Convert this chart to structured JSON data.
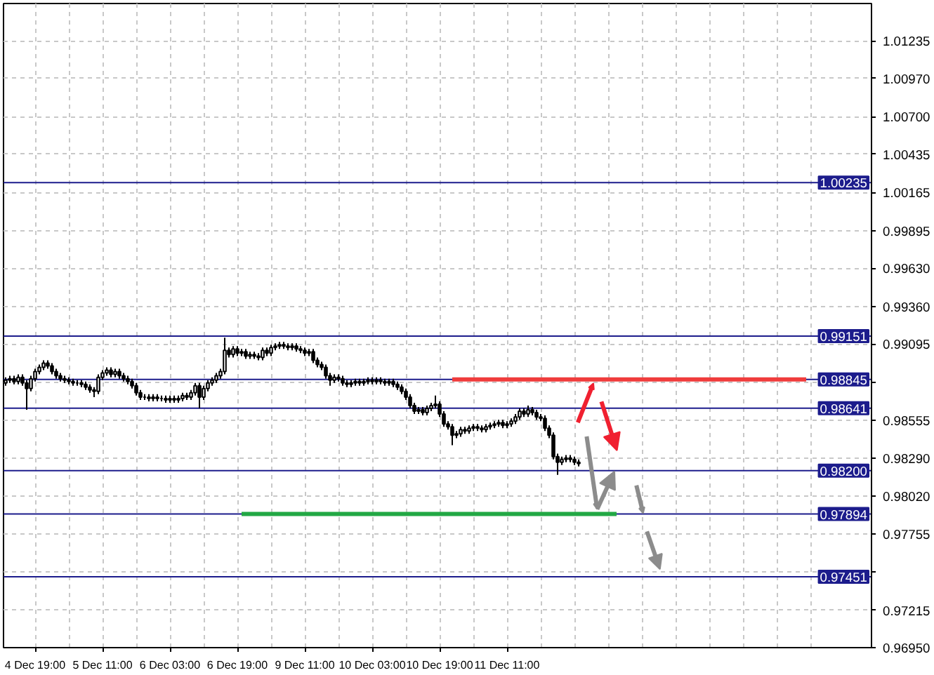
{
  "chart_data": {
    "type": "candlestick",
    "color": "#000000",
    "categories": [
      null,
      null,
      null,
      null,
      null,
      null,
      null,
      "4 Dec 19:00",
      null,
      null,
      null,
      null,
      null,
      null,
      null,
      null,
      null,
      null,
      null,
      null,
      null,
      null,
      null,
      "5 Dec 11:00",
      null,
      null,
      null,
      null,
      null,
      null,
      null,
      null,
      null,
      null,
      null,
      null,
      null,
      null,
      null,
      "6 Dec 03:00",
      null,
      null,
      null,
      null,
      null,
      null,
      null,
      null,
      null,
      null,
      null,
      null,
      null,
      null,
      null,
      "6 Dec 19:00",
      null,
      null,
      null,
      null,
      null,
      null,
      null,
      null,
      null,
      null,
      null,
      null,
      null,
      null,
      null,
      "9 Dec 11:00",
      null,
      null,
      null,
      null,
      null,
      null,
      null,
      null,
      null,
      null,
      null,
      null,
      null,
      null,
      null,
      "10 Dec 03:00",
      null,
      null,
      null,
      null,
      null,
      null,
      null,
      null,
      null,
      null,
      null,
      null,
      null,
      null,
      null,
      "10 Dec 19:00",
      null,
      null,
      null,
      null,
      null,
      null,
      null,
      null,
      null,
      null,
      null,
      null,
      null,
      null,
      null,
      "11 Dec 11:00",
      null,
      null,
      null,
      null,
      null,
      null,
      null,
      null,
      null,
      null,
      null,
      null,
      null,
      null,
      null,
      null,
      null,
      null,
      null,
      null,
      null,
      null,
      null,
      null,
      null,
      null,
      null,
      null,
      null,
      null,
      null,
      null,
      null,
      null,
      null,
      null,
      null,
      null,
      null,
      null,
      null,
      null,
      null,
      null,
      null,
      null,
      null,
      null,
      null,
      null,
      null,
      null,
      null,
      null,
      null,
      null,
      null,
      null,
      null,
      null,
      null,
      null,
      null,
      null,
      null,
      null,
      null,
      null,
      null,
      null,
      null,
      null,
      null,
      null
    ],
    "ohlc": [
      [
        0.9882,
        0.9886,
        0.988,
        0.9884
      ],
      [
        0.9884,
        0.9887,
        0.9882,
        0.9885
      ],
      [
        0.9885,
        0.9887,
        0.9881,
        0.9883
      ],
      [
        0.9883,
        0.9888,
        0.9881,
        0.9886
      ],
      [
        0.9886,
        0.9888,
        0.988,
        0.9882
      ],
      [
        0.9882,
        0.9884,
        0.9863,
        0.9878
      ],
      [
        0.9878,
        0.9887,
        0.9876,
        0.9885
      ],
      [
        0.9885,
        0.9892,
        0.9883,
        0.989
      ],
      [
        0.989,
        0.9895,
        0.9888,
        0.9893
      ],
      [
        0.9893,
        0.9898,
        0.9891,
        0.9896
      ],
      [
        0.9896,
        0.9898,
        0.9892,
        0.9894
      ],
      [
        0.9894,
        0.9896,
        0.9888,
        0.989
      ],
      [
        0.989,
        0.9892,
        0.9885,
        0.9887
      ],
      [
        0.9887,
        0.9889,
        0.9883,
        0.9885
      ],
      [
        0.9885,
        0.9887,
        0.9882,
        0.9884
      ],
      [
        0.9884,
        0.9886,
        0.9881,
        0.9883
      ],
      [
        0.9883,
        0.9885,
        0.988,
        0.9882
      ],
      [
        0.9882,
        0.9884,
        0.988,
        0.9882
      ],
      [
        0.9882,
        0.9884,
        0.9879,
        0.9881
      ],
      [
        0.9881,
        0.9883,
        0.9877,
        0.9879
      ],
      [
        0.9879,
        0.9881,
        0.9875,
        0.9877
      ],
      [
        0.9877,
        0.9879,
        0.9872,
        0.9876
      ],
      [
        0.9876,
        0.9888,
        0.9874,
        0.9886
      ],
      [
        0.9886,
        0.9891,
        0.9884,
        0.9889
      ],
      [
        0.9889,
        0.9893,
        0.9887,
        0.9891
      ],
      [
        0.9891,
        0.9893,
        0.9886,
        0.9888
      ],
      [
        0.9888,
        0.9892,
        0.9886,
        0.989
      ],
      [
        0.989,
        0.9892,
        0.9885,
        0.9887
      ],
      [
        0.9887,
        0.9889,
        0.9883,
        0.9885
      ],
      [
        0.9885,
        0.9887,
        0.9881,
        0.9883
      ],
      [
        0.9883,
        0.9885,
        0.9878,
        0.988
      ],
      [
        0.988,
        0.9882,
        0.9873,
        0.9875
      ],
      [
        0.9875,
        0.9877,
        0.987,
        0.9872
      ],
      [
        0.9872,
        0.9874,
        0.987,
        0.9872
      ],
      [
        0.9872,
        0.9874,
        0.9869,
        0.9871
      ],
      [
        0.9871,
        0.9874,
        0.9869,
        0.9872
      ],
      [
        0.9872,
        0.9874,
        0.9869,
        0.9871
      ],
      [
        0.9871,
        0.9873,
        0.9869,
        0.9871
      ],
      [
        0.9871,
        0.9873,
        0.9868,
        0.987
      ],
      [
        0.987,
        0.9873,
        0.9868,
        0.9871
      ],
      [
        0.9871,
        0.9873,
        0.9868,
        0.987
      ],
      [
        0.987,
        0.9873,
        0.9868,
        0.9871
      ],
      [
        0.9871,
        0.9875,
        0.9869,
        0.9873
      ],
      [
        0.9873,
        0.9875,
        0.987,
        0.9872
      ],
      [
        0.9872,
        0.9877,
        0.987,
        0.9875
      ],
      [
        0.9875,
        0.9882,
        0.9873,
        0.988
      ],
      [
        0.988,
        0.9882,
        0.9864,
        0.9872
      ],
      [
        0.9872,
        0.988,
        0.987,
        0.9878
      ],
      [
        0.9878,
        0.9884,
        0.9876,
        0.9882
      ],
      [
        0.9882,
        0.9886,
        0.988,
        0.9884
      ],
      [
        0.9884,
        0.9889,
        0.9882,
        0.9887
      ],
      [
        0.9887,
        0.9892,
        0.9885,
        0.989
      ],
      [
        0.989,
        0.9914,
        0.9888,
        0.9905
      ],
      [
        0.9905,
        0.9907,
        0.99,
        0.9902
      ],
      [
        0.9902,
        0.9908,
        0.99,
        0.9906
      ],
      [
        0.9906,
        0.9908,
        0.9901,
        0.9903
      ],
      [
        0.9903,
        0.9906,
        0.9901,
        0.9904
      ],
      [
        0.9904,
        0.9906,
        0.9899,
        0.9901
      ],
      [
        0.9901,
        0.9904,
        0.9899,
        0.9902
      ],
      [
        0.9902,
        0.9904,
        0.9899,
        0.9901
      ],
      [
        0.9901,
        0.9903,
        0.9898,
        0.99
      ],
      [
        0.99,
        0.9907,
        0.9898,
        0.9905
      ],
      [
        0.9905,
        0.9907,
        0.9901,
        0.9903
      ],
      [
        0.9903,
        0.9909,
        0.9901,
        0.9907
      ],
      [
        0.9907,
        0.991,
        0.9905,
        0.9908
      ],
      [
        0.9908,
        0.9911,
        0.9906,
        0.9909
      ],
      [
        0.9909,
        0.9911,
        0.9906,
        0.9908
      ],
      [
        0.9908,
        0.991,
        0.9905,
        0.9907
      ],
      [
        0.9907,
        0.991,
        0.9905,
        0.9908
      ],
      [
        0.9908,
        0.991,
        0.9904,
        0.9906
      ],
      [
        0.9906,
        0.9908,
        0.9903,
        0.9905
      ],
      [
        0.9905,
        0.9907,
        0.9901,
        0.9903
      ],
      [
        0.9903,
        0.9906,
        0.9901,
        0.9904
      ],
      [
        0.9904,
        0.9906,
        0.9896,
        0.9898
      ],
      [
        0.9898,
        0.99,
        0.9893,
        0.9895
      ],
      [
        0.9895,
        0.9897,
        0.9891,
        0.9893
      ],
      [
        0.9893,
        0.9895,
        0.9885,
        0.9887
      ],
      [
        0.9887,
        0.9889,
        0.988,
        0.9884
      ],
      [
        0.9884,
        0.9888,
        0.9882,
        0.9886
      ],
      [
        0.9886,
        0.9888,
        0.9883,
        0.9885
      ],
      [
        0.9885,
        0.9887,
        0.988,
        0.9882
      ],
      [
        0.9882,
        0.9884,
        0.9879,
        0.9881
      ],
      [
        0.9881,
        0.9884,
        0.9879,
        0.9882
      ],
      [
        0.9882,
        0.9885,
        0.988,
        0.9883
      ],
      [
        0.9883,
        0.9885,
        0.988,
        0.9882
      ],
      [
        0.9882,
        0.9885,
        0.988,
        0.9883
      ],
      [
        0.9883,
        0.9886,
        0.9881,
        0.9884
      ],
      [
        0.9884,
        0.9886,
        0.9881,
        0.9883
      ],
      [
        0.9883,
        0.9886,
        0.9881,
        0.9884
      ],
      [
        0.9884,
        0.9886,
        0.9881,
        0.9883
      ],
      [
        0.9883,
        0.9885,
        0.988,
        0.9882
      ],
      [
        0.9882,
        0.9885,
        0.988,
        0.9883
      ],
      [
        0.9883,
        0.9885,
        0.9879,
        0.9881
      ],
      [
        0.9881,
        0.9883,
        0.9877,
        0.9879
      ],
      [
        0.9879,
        0.9881,
        0.9874,
        0.9876
      ],
      [
        0.9876,
        0.9878,
        0.987,
        0.9872
      ],
      [
        0.9872,
        0.9874,
        0.9864,
        0.9866
      ],
      [
        0.9866,
        0.9868,
        0.986,
        0.9862
      ],
      [
        0.9862,
        0.9865,
        0.986,
        0.9863
      ],
      [
        0.9863,
        0.9865,
        0.9859,
        0.9861
      ],
      [
        0.9861,
        0.9866,
        0.9859,
        0.9864
      ],
      [
        0.9864,
        0.9868,
        0.9862,
        0.9866
      ],
      [
        0.9866,
        0.9873,
        0.9864,
        0.9867
      ],
      [
        0.9867,
        0.9869,
        0.9858,
        0.986
      ],
      [
        0.986,
        0.9862,
        0.9851,
        0.9853
      ],
      [
        0.9853,
        0.9855,
        0.9849,
        0.9851
      ],
      [
        0.9851,
        0.9853,
        0.9838,
        0.9845
      ],
      [
        0.9845,
        0.9848,
        0.9843,
        0.9846
      ],
      [
        0.9846,
        0.9851,
        0.9844,
        0.9849
      ],
      [
        0.9849,
        0.9851,
        0.9846,
        0.9848
      ],
      [
        0.9848,
        0.9852,
        0.9846,
        0.985
      ],
      [
        0.985,
        0.9853,
        0.9848,
        0.9851
      ],
      [
        0.9851,
        0.9853,
        0.9848,
        0.985
      ],
      [
        0.985,
        0.9852,
        0.9847,
        0.9849
      ],
      [
        0.9849,
        0.9853,
        0.9847,
        0.9851
      ],
      [
        0.9851,
        0.9854,
        0.9849,
        0.9852
      ],
      [
        0.9852,
        0.9855,
        0.985,
        0.9853
      ],
      [
        0.9853,
        0.9856,
        0.9851,
        0.9854
      ],
      [
        0.9854,
        0.9856,
        0.985,
        0.9852
      ],
      [
        0.9852,
        0.9855,
        0.985,
        0.9853
      ],
      [
        0.9853,
        0.9857,
        0.9851,
        0.9855
      ],
      [
        0.9855,
        0.986,
        0.9853,
        0.9858
      ],
      [
        0.9858,
        0.9864,
        0.9856,
        0.9862
      ],
      [
        0.9862,
        0.9864,
        0.9858,
        0.986
      ],
      [
        0.986,
        0.9866,
        0.9858,
        0.9863
      ],
      [
        0.9863,
        0.9865,
        0.9859,
        0.9861
      ],
      [
        0.9861,
        0.9863,
        0.9856,
        0.9858
      ],
      [
        0.9858,
        0.986,
        0.9855,
        0.9857
      ],
      [
        0.9857,
        0.9859,
        0.9848,
        0.985
      ],
      [
        0.985,
        0.9852,
        0.9843,
        0.9845
      ],
      [
        0.9845,
        0.9847,
        0.9828,
        0.983
      ],
      [
        0.983,
        0.9832,
        0.9817,
        0.9826
      ],
      [
        0.9826,
        0.983,
        0.9824,
        0.9828
      ],
      [
        0.9828,
        0.9831,
        0.9826,
        0.9829
      ],
      [
        0.9829,
        0.9831,
        0.9826,
        0.9828
      ],
      [
        0.9828,
        0.983,
        0.9824,
        0.9826
      ],
      [
        0.9826,
        0.9828,
        0.9823,
        0.9825
      ],
      null,
      null,
      null,
      null,
      null,
      null,
      null,
      null,
      null,
      null,
      null,
      null,
      null,
      null,
      null,
      null,
      null,
      null,
      null,
      null,
      null,
      null,
      null,
      null,
      null,
      null,
      null,
      null,
      null,
      null,
      null,
      null,
      null,
      null,
      null,
      null,
      null,
      null,
      null,
      null,
      null,
      null,
      null,
      null,
      null,
      null,
      null,
      null,
      null,
      null,
      null,
      null,
      null,
      null,
      null,
      null,
      null
    ],
    "series": [
      {
        "type": "line",
        "color": "#f03c3c",
        "values": [
          null,
          null,
          null,
          null,
          null,
          null,
          null,
          null,
          null,
          null,
          null,
          null,
          null,
          null,
          null,
          null,
          null,
          null,
          null,
          null,
          null,
          null,
          null,
          null,
          null,
          null,
          null,
          null,
          null,
          null,
          null,
          null,
          null,
          null,
          null,
          null,
          null,
          null,
          null,
          null,
          null,
          null,
          null,
          null,
          null,
          null,
          null,
          null,
          null,
          null,
          null,
          null,
          null,
          null,
          null,
          null,
          null,
          null,
          null,
          null,
          null,
          null,
          null,
          null,
          null,
          null,
          null,
          null,
          null,
          null,
          null,
          null,
          null,
          null,
          null,
          null,
          null,
          null,
          null,
          null,
          null,
          null,
          null,
          null,
          null,
          null,
          null,
          null,
          null,
          null,
          null,
          null,
          null,
          null,
          null,
          null,
          null,
          null,
          null,
          null,
          null,
          null,
          null,
          null,
          null,
          null,
          0.98845,
          0.98845,
          0.98845,
          0.98845,
          0.98845,
          0.98845,
          0.98845,
          0.98845,
          0.98845,
          0.98845,
          0.98845,
          0.98845,
          0.98845,
          0.98845,
          0.98845,
          0.98845,
          0.98845,
          0.98845,
          0.98845,
          0.98845,
          0.98845,
          0.98845,
          0.98845,
          0.98845,
          0.98845,
          0.98845,
          0.98845,
          0.98845,
          0.98845,
          0.98845,
          0.98845,
          0.98845,
          0.98845,
          0.98845,
          0.98845,
          0.98845,
          0.98845,
          0.98845,
          0.98845,
          0.98845,
          0.98845,
          0.98845,
          0.98845,
          0.98845,
          0.98845,
          0.98845,
          0.98845,
          0.98845,
          0.98845,
          0.98845,
          0.98845,
          0.98845,
          0.98845,
          0.98845,
          0.98845,
          0.98845,
          0.98845,
          0.98845,
          0.98845,
          0.98845,
          0.98845,
          0.98845,
          0.98845,
          0.98845,
          0.98845,
          0.98845,
          0.98845,
          0.98845,
          0.98845,
          0.98845,
          0.98845,
          0.98845,
          0.98845,
          0.98845,
          0.98845,
          0.98845,
          0.98845,
          0.98845,
          0.98845,
          0.98845,
          0.98845,
          0.98845,
          0.98845,
          0.98845,
          0.98845,
          null,
          null,
          null
        ]
      },
      {
        "type": "line",
        "color": "#22a844",
        "values": [
          null,
          null,
          null,
          null,
          null,
          null,
          null,
          null,
          null,
          null,
          null,
          null,
          null,
          null,
          null,
          null,
          null,
          null,
          null,
          null,
          null,
          null,
          null,
          null,
          null,
          null,
          null,
          null,
          null,
          null,
          null,
          null,
          null,
          null,
          null,
          null,
          null,
          null,
          null,
          null,
          null,
          null,
          null,
          null,
          null,
          null,
          null,
          null,
          null,
          null,
          null,
          null,
          null,
          null,
          null,
          null,
          0.97894,
          0.97894,
          0.97894,
          0.97894,
          0.97894,
          0.97894,
          0.97894,
          0.97894,
          0.97894,
          0.97894,
          0.97894,
          0.97894,
          0.97894,
          0.97894,
          0.97894,
          0.97894,
          0.97894,
          0.97894,
          0.97894,
          0.97894,
          0.97894,
          0.97894,
          0.97894,
          0.97894,
          0.97894,
          0.97894,
          0.97894,
          0.97894,
          0.97894,
          0.97894,
          0.97894,
          0.97894,
          0.97894,
          0.97894,
          0.97894,
          0.97894,
          0.97894,
          0.97894,
          0.97894,
          0.97894,
          0.97894,
          0.97894,
          0.97894,
          0.97894,
          0.97894,
          0.97894,
          0.97894,
          0.97894,
          0.97894,
          0.97894,
          0.97894,
          0.97894,
          0.97894,
          0.97894,
          0.97894,
          0.97894,
          0.97894,
          0.97894,
          0.97894,
          0.97894,
          0.97894,
          0.97894,
          0.97894,
          0.97894,
          0.97894,
          0.97894,
          0.97894,
          0.97894,
          0.97894,
          0.97894,
          0.97894,
          0.97894,
          0.97894,
          0.97894,
          0.97894,
          0.97894,
          0.97894,
          0.97894,
          0.97894,
          0.97894,
          0.97894,
          0.97894,
          0.97894,
          0.97894,
          0.97894,
          0.97894,
          0.97894,
          0.97894,
          0.97894,
          0.97894,
          null,
          null,
          null,
          null,
          null,
          null,
          null,
          null,
          null,
          null,
          null,
          null,
          null,
          null,
          null,
          null,
          null,
          null,
          null,
          null,
          null,
          null,
          null,
          null,
          null,
          null,
          null,
          null,
          null,
          null,
          null,
          null,
          null,
          null,
          null,
          null,
          null,
          null,
          null,
          null,
          null,
          null,
          null,
          null,
          null,
          null,
          null,
          null
        ]
      }
    ],
    "ref_lines": [
      {
        "axis": "y",
        "value": 1.00235,
        "label": "1.00235",
        "color": "#1c1c8c"
      },
      {
        "axis": "y",
        "value": 0.99151,
        "label": "0.99151",
        "color": "#1c1c8c"
      },
      {
        "axis": "y",
        "value": 0.98845,
        "label": "0.98845",
        "color": "#1c1c8c"
      },
      {
        "axis": "y",
        "value": 0.98641,
        "label": "0.98641",
        "color": "#1c1c8c"
      },
      {
        "axis": "y",
        "value": 0.982,
        "label": "0.98200",
        "color": "#1c1c8c"
      },
      {
        "axis": "y",
        "value": 0.97894,
        "label": "0.97894",
        "color": "#1c1c8c"
      },
      {
        "axis": "y",
        "value": 0.97451,
        "label": "0.97451",
        "color": "#1c1c8c"
      }
    ],
    "ylim": [
      0.9695,
      1.015
    ],
    "yticks": [
      {
        "value": 1.01235,
        "label": "1.01235"
      },
      {
        "value": 1.0097,
        "label": "1.00970"
      },
      {
        "value": 1.007,
        "label": "1.00700"
      },
      {
        "value": 1.00435,
        "label": "1.00435"
      },
      {
        "value": 1.00165,
        "label": "1.00165"
      },
      {
        "value": 0.99895,
        "label": "0.99895"
      },
      {
        "value": 0.9963,
        "label": "0.99630"
      },
      {
        "value": 0.9936,
        "label": "0.99360"
      },
      {
        "value": 0.99095,
        "label": "0.99095"
      },
      {
        "value": 0.98825,
        "label": null
      },
      {
        "value": 0.98555,
        "label": "0.98555"
      },
      {
        "value": 0.9829,
        "label": "0.98290"
      },
      {
        "value": 0.9802,
        "label": "0.98020"
      },
      {
        "value": 0.97755,
        "label": "0.97755"
      },
      {
        "value": 0.97485,
        "label": null
      },
      {
        "value": 0.97215,
        "label": "0.97215"
      },
      {
        "value": 0.9695,
        "label": "0.96950"
      }
    ],
    "grid": true
  }
}
